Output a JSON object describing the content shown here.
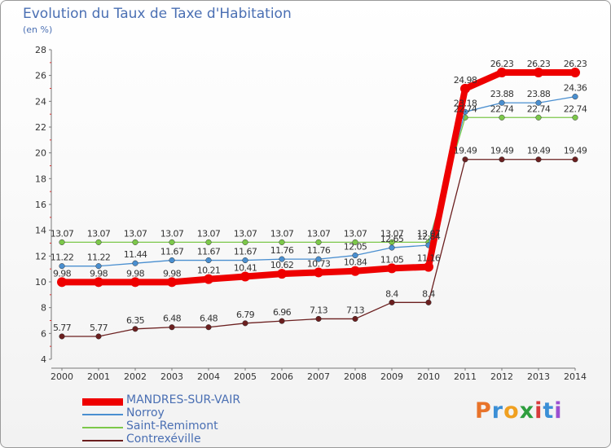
{
  "header": {
    "title": "Evolution du Taux de Taxe d'Habitation",
    "subtitle": "(en %)"
  },
  "logo": {
    "text": "Proxiti",
    "colors": [
      "#e8732a",
      "#3b8fd6",
      "#f0a020",
      "#2e9e3e",
      "#d83b3b",
      "#3b8fd6",
      "#9b4fd1"
    ]
  },
  "chart_data": {
    "type": "line",
    "title": "Evolution du Taux de Taxe d'Habitation",
    "ylabel": "(en %)",
    "xlabel": "",
    "x": [
      "2000",
      "2001",
      "2002",
      "2003",
      "2004",
      "2005",
      "2006",
      "2007",
      "2008",
      "2009",
      "2010",
      "2011",
      "2012",
      "2013",
      "2014"
    ],
    "ylim": [
      4,
      28
    ],
    "yticks": [
      4,
      6,
      8,
      10,
      12,
      14,
      16,
      18,
      20,
      22,
      24,
      26,
      28
    ],
    "grid": false,
    "legend_position": "bottom-left",
    "series": [
      {
        "name": "MANDRES-SUR-VAIR",
        "color": "#ee0000",
        "values": [
          9.98,
          9.98,
          9.98,
          9.98,
          10.21,
          10.41,
          10.62,
          10.73,
          10.84,
          11.05,
          11.16,
          24.98,
          26.23,
          26.23,
          26.23
        ]
      },
      {
        "name": "Norroy",
        "color": "#4a8fd0",
        "values": [
          11.22,
          11.22,
          11.44,
          11.67,
          11.67,
          11.67,
          11.76,
          11.76,
          12.05,
          12.65,
          12.84,
          23.18,
          23.88,
          23.88,
          24.36
        ]
      },
      {
        "name": "Saint-Remimont",
        "color": "#7cc84a",
        "values": [
          13.07,
          13.07,
          13.07,
          13.07,
          13.07,
          13.07,
          13.07,
          13.07,
          13.07,
          13.07,
          13.07,
          22.74,
          22.74,
          22.74,
          22.74
        ]
      },
      {
        "name": "Contrexéville",
        "color": "#6b1f1f",
        "values": [
          5.77,
          5.77,
          6.35,
          6.48,
          6.48,
          6.79,
          6.96,
          7.13,
          7.13,
          8.4,
          8.4,
          19.49,
          19.49,
          19.49,
          19.49
        ]
      }
    ]
  }
}
